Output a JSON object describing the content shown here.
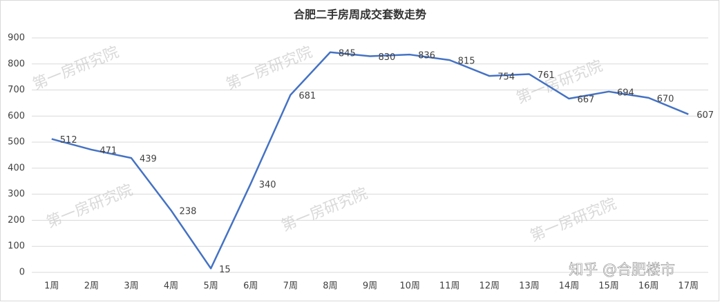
{
  "chart_data": {
    "type": "line",
    "title": "合肥二手房周成交套数走势",
    "categories": [
      "1周",
      "2周",
      "3周",
      "4周",
      "5周",
      "6周",
      "7周",
      "8周",
      "9周",
      "10周",
      "11周",
      "12周",
      "13周",
      "14周",
      "15周",
      "16周",
      "17周"
    ],
    "values": [
      512,
      471,
      439,
      238,
      15,
      340,
      681,
      845,
      830,
      836,
      815,
      754,
      761,
      667,
      694,
      670,
      607
    ],
    "color": "#4472c4",
    "ylim": [
      0,
      900
    ],
    "yticks": [
      0,
      100,
      200,
      300,
      400,
      500,
      600,
      700,
      800,
      900
    ],
    "grid": true,
    "watermark": "第一房研究院",
    "source": "知乎 @合肥楼市"
  }
}
